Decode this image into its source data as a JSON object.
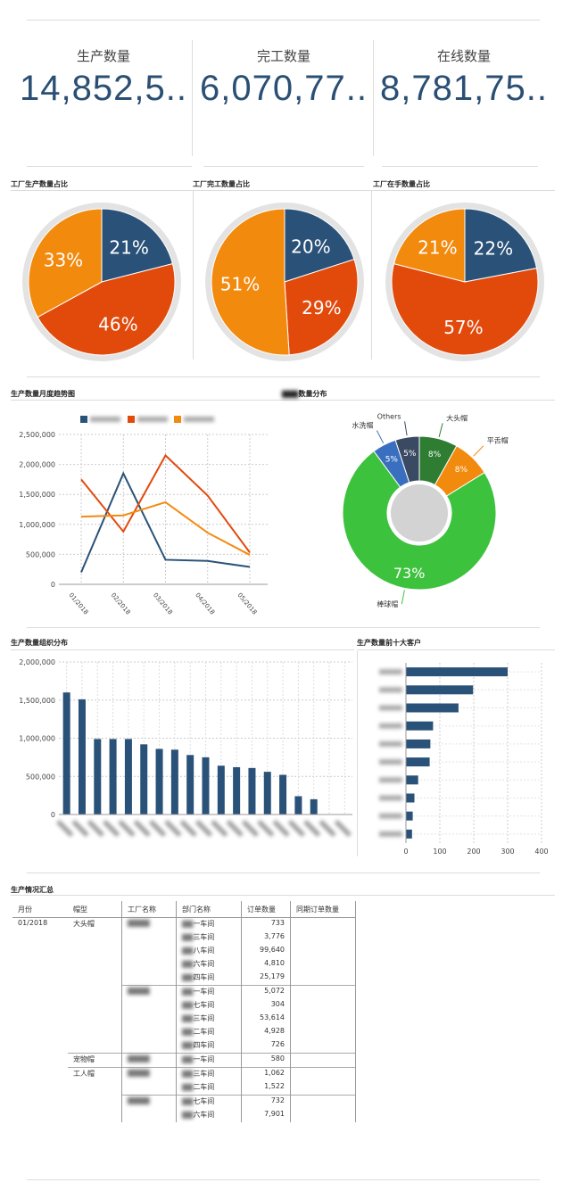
{
  "kpis": [
    {
      "label": "生产数量",
      "value": "14,852,5.."
    },
    {
      "label": "完工数量",
      "value": "6,070,77.."
    },
    {
      "label": "在线数量",
      "value": "8,781,75.."
    }
  ],
  "pie_titles": [
    "工厂生产数量占比",
    "工厂完工数量占比",
    "工厂在手数量占比"
  ],
  "colors": {
    "blue": "#2a5278",
    "orange": "#f28a0e",
    "red": "#e24a0c",
    "green": "#3dc23d",
    "darkgreen": "#2e7d32",
    "gray": "#d9d9d9"
  },
  "line_title": "生产数量月度趋势图",
  "donut_title_suffix": "数量分布",
  "bar_title": "生产数量组织分布",
  "hbar_title": "生产数量前十大客户",
  "table_title": "生产情况汇总",
  "chart_data": [
    {
      "type": "pie",
      "title": "工厂生产数量占比",
      "slices": [
        {
          "label": "21%",
          "value": 21,
          "color": "blue"
        },
        {
          "label": "46%",
          "value": 46,
          "color": "red"
        },
        {
          "label": "33%",
          "value": 33,
          "color": "orange"
        }
      ]
    },
    {
      "type": "pie",
      "title": "工厂完工数量占比",
      "slices": [
        {
          "label": "20%",
          "value": 20,
          "color": "blue"
        },
        {
          "label": "29%",
          "value": 29,
          "color": "red"
        },
        {
          "label": "51%",
          "value": 51,
          "color": "orange"
        }
      ]
    },
    {
      "type": "pie",
      "title": "工厂在手数量占比",
      "slices": [
        {
          "label": "22%",
          "value": 22,
          "color": "blue"
        },
        {
          "label": "57%",
          "value": 57,
          "color": "red"
        },
        {
          "label": "21%",
          "value": 21,
          "color": "orange"
        }
      ]
    },
    {
      "type": "line",
      "title": "生产数量月度趋势图",
      "categories": [
        "01/2018",
        "02/2018",
        "03/2018",
        "04/2018",
        "05/2018"
      ],
      "ylim": [
        0,
        2500000
      ],
      "yticks": [
        "0",
        "500,000",
        "1,000,000",
        "1,500,000",
        "2,000,000",
        "2,500,000"
      ],
      "series": [
        {
          "name": "",
          "color": "blue",
          "values": [
            200000,
            1850000,
            410000,
            390000,
            290000
          ]
        },
        {
          "name": "",
          "color": "red",
          "values": [
            1750000,
            880000,
            2150000,
            1480000,
            530000
          ]
        },
        {
          "name": "",
          "color": "orange",
          "values": [
            1130000,
            1150000,
            1370000,
            860000,
            490000
          ]
        }
      ]
    },
    {
      "type": "pie",
      "title": "数量分布",
      "donut": true,
      "slices": [
        {
          "name": "大头帽",
          "label": "8%",
          "value": 8,
          "color": "darkgreen"
        },
        {
          "name": "平舌帽",
          "label": "8%",
          "value": 8,
          "color": "orange"
        },
        {
          "name": "棒球帽",
          "label": "73%",
          "value": 73,
          "color": "green"
        },
        {
          "name": "水洗帽",
          "label": "5%",
          "value": 5,
          "color": "#3a6fc0"
        },
        {
          "name": "Others",
          "label": "5%",
          "value": 5,
          "color": "#3b4a63"
        }
      ]
    },
    {
      "type": "bar",
      "title": "生产数量组织分布",
      "ylim": [
        0,
        2000000
      ],
      "yticks": [
        "0",
        "500,000",
        "1,000,000",
        "1,500,000",
        "2,000,000"
      ],
      "values": [
        1600000,
        1510000,
        990000,
        990000,
        990000,
        920000,
        860000,
        850000,
        780000,
        750000,
        640000,
        620000,
        610000,
        560000,
        520000,
        240000,
        200000,
        0,
        0
      ]
    },
    {
      "type": "bar",
      "orientation": "horizontal",
      "title": "生产数量前十大客户",
      "xlim": [
        0,
        400
      ],
      "xticks": [
        "0",
        "100",
        "200",
        "300",
        "400"
      ],
      "values": [
        300,
        198,
        155,
        80,
        72,
        70,
        36,
        25,
        20,
        18
      ]
    }
  ],
  "table": {
    "headers": [
      "月份",
      "帽型",
      "工厂名称",
      "部门名称",
      "订单数量",
      "同期订单数量"
    ],
    "month": "01/2018",
    "groups": [
      {
        "type": "大头帽",
        "factories": [
          {
            "name": "",
            "rows": [
              {
                "dept": "一车间",
                "qty": "733"
              },
              {
                "dept": "三车间",
                "qty": "3,776"
              },
              {
                "dept": "八车间",
                "qty": "99,640"
              },
              {
                "dept": "六车间",
                "qty": "4,810"
              },
              {
                "dept": "四车间",
                "qty": "25,179"
              }
            ]
          },
          {
            "name": "",
            "rows": [
              {
                "dept": "一车间",
                "qty": "5,072"
              },
              {
                "dept": "七车间",
                "qty": "304"
              },
              {
                "dept": "三车间",
                "qty": "53,614"
              },
              {
                "dept": "二车间",
                "qty": "4,928"
              },
              {
                "dept": "四车间",
                "qty": "726"
              }
            ]
          }
        ]
      },
      {
        "type": "宠物帽",
        "factories": [
          {
            "name": "",
            "rows": [
              {
                "dept": "一车间",
                "qty": "580"
              }
            ]
          }
        ]
      },
      {
        "type": "工人帽",
        "factories": [
          {
            "name": "",
            "rows": [
              {
                "dept": "三车间",
                "qty": "1,062"
              },
              {
                "dept": "二车间",
                "qty": "1,522"
              }
            ]
          },
          {
            "name": "",
            "rows": [
              {
                "dept": "七车间",
                "qty": "732"
              },
              {
                "dept": "六车间",
                "qty": "7,901"
              }
            ]
          }
        ]
      }
    ]
  }
}
